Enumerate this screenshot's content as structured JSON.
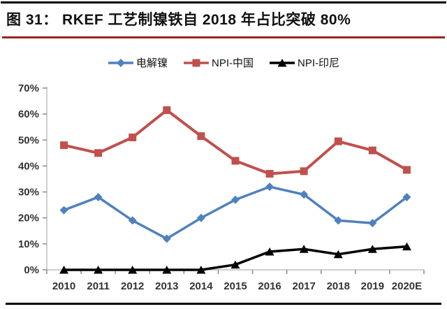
{
  "figure": {
    "title": "图 31： RKEF 工艺制镍铁自 2018 年占比突破 80%"
  },
  "colors": {
    "top_rule": "#000000",
    "title_rule": "#99261f",
    "bottom_rule": "#000000",
    "axis_line": "#bfbfbf",
    "tick": "#8c8c8c",
    "tick_label": "#333333"
  },
  "chart_data": {
    "type": "line",
    "title": "",
    "xlabel": "",
    "ylabel": "",
    "categories": [
      "2010",
      "2011",
      "2012",
      "2013",
      "2014",
      "2015",
      "2016",
      "2017",
      "2018",
      "2019",
      "2020E"
    ],
    "series": [
      {
        "name": "电解镍",
        "color": "#4f81bd",
        "marker": "diamond",
        "values": [
          23,
          28,
          19,
          12,
          20,
          27,
          32,
          29,
          19,
          18,
          28
        ]
      },
      {
        "name": "NPI-中国",
        "color": "#c0504d",
        "marker": "square",
        "values": [
          48,
          45,
          51,
          61.5,
          51.5,
          42,
          37,
          38,
          49.5,
          46,
          38.5
        ]
      },
      {
        "name": "NPI-印尼",
        "color": "#000000",
        "marker": "triangle",
        "values": [
          0,
          0,
          0,
          0,
          0,
          2,
          7,
          8,
          6,
          8,
          9
        ]
      }
    ],
    "ylim": [
      0,
      70
    ],
    "ytick_labels": [
      "0%",
      "10%",
      "20%",
      "30%",
      "40%",
      "50%",
      "60%",
      "70%"
    ],
    "grid": false,
    "legend_position": "top"
  }
}
